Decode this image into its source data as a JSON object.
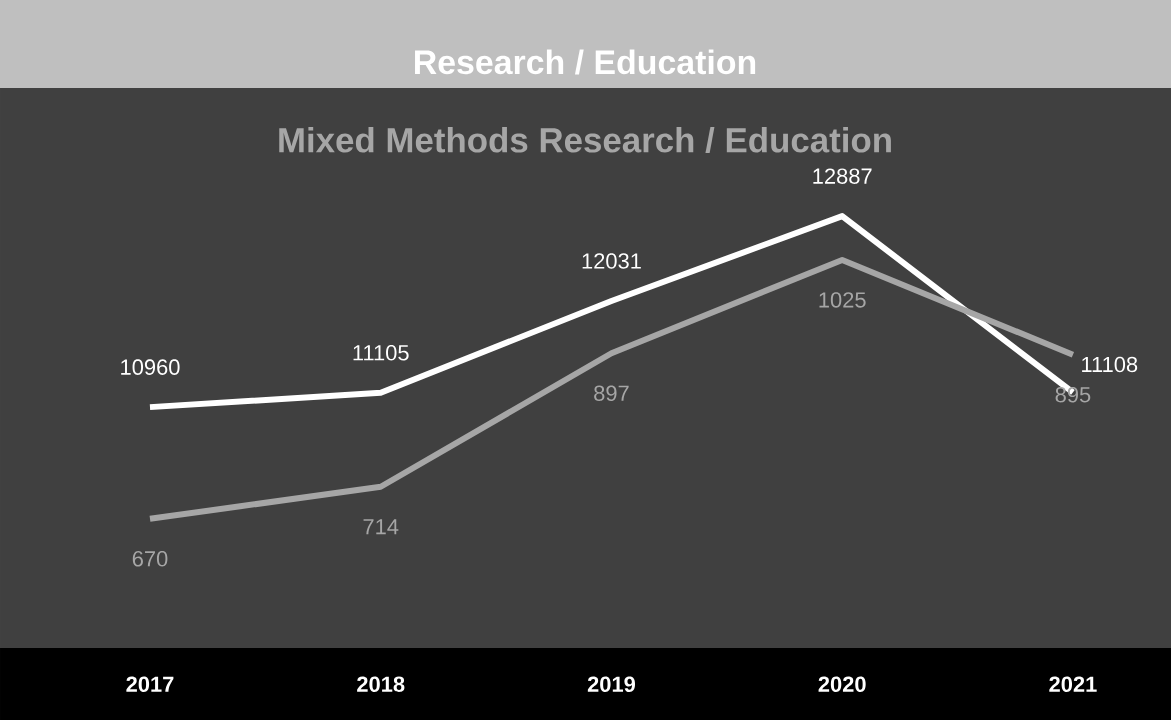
{
  "chart_data": {
    "type": "line",
    "title": "Research / Education",
    "subtitle": "Mixed Methods Research / Education",
    "categories": [
      "2017",
      "2018",
      "2019",
      "2020",
      "2021"
    ],
    "series": [
      {
        "color": "#ffffff",
        "values": [
          10960,
          11105,
          12031,
          12887,
          11108
        ],
        "value_labels": [
          "10960",
          "11105",
          "12031",
          "12887",
          "11108"
        ]
      },
      {
        "color": "#a6a6a6",
        "axis": "y2",
        "values": [
          670,
          714,
          897,
          1025,
          895
        ],
        "value_labels": [
          "670",
          "714",
          "897",
          "1025",
          "895"
        ]
      }
    ],
    "ylim": [
      8560,
      14160
    ],
    "y2lim": [
      497,
      1258
    ],
    "tick_labels": "x",
    "marker": "none",
    "line_style": "solid"
  }
}
